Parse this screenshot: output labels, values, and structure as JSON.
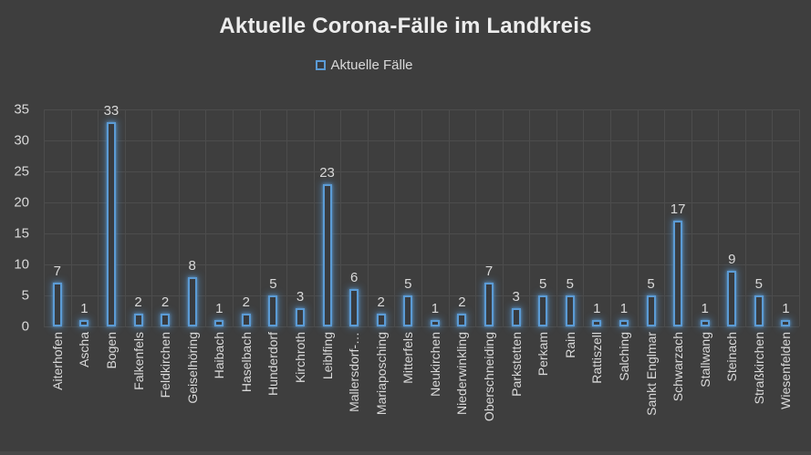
{
  "title": "Aktuelle Corona-Fälle im Landkreis",
  "legend": {
    "label": "Aktuelle Fälle"
  },
  "colors": {
    "background": "#3e3e3e",
    "gridline": "#4c4c4c",
    "bar_border": "#5b9bd5",
    "bar_glow": "rgba(91,155,213,0.5)",
    "axis_text": "#d9d9d9",
    "title_text": "#ededed"
  },
  "chart_data": {
    "type": "bar",
    "title": "Aktuelle Corona-Fälle im Landkreis",
    "legend_entries": [
      "Aktuelle Fälle"
    ],
    "legend_position": "top",
    "grid": "both",
    "data_labels": true,
    "ylim": [
      0,
      35
    ],
    "ytick_step": 5,
    "yticks": [
      0,
      5,
      10,
      15,
      20,
      25,
      30,
      35
    ],
    "categories": [
      "Aiterhofen",
      "Ascha",
      "Bogen",
      "Falkenfels",
      "Feldkirchen",
      "Geiselhöring",
      "Haibach",
      "Haselbach",
      "Hunderdorf",
      "Kirchroth",
      "Leiblfing",
      "Mallersdorf-…",
      "Mariaposching",
      "Mitterfels",
      "Neukirchen",
      "Niederwinkling",
      "Oberschneiding",
      "Parkstetten",
      "Perkam",
      "Rain",
      "Rattiszell",
      "Salching",
      "Sankt Englmar",
      "Schwarzach",
      "Stallwang",
      "Steinach",
      "Straßkirchen",
      "Wiesenfelden"
    ],
    "values": [
      7,
      1,
      33,
      2,
      2,
      8,
      1,
      2,
      5,
      3,
      23,
      6,
      2,
      5,
      1,
      2,
      7,
      3,
      5,
      5,
      1,
      1,
      5,
      17,
      1,
      9,
      5,
      1
    ]
  }
}
